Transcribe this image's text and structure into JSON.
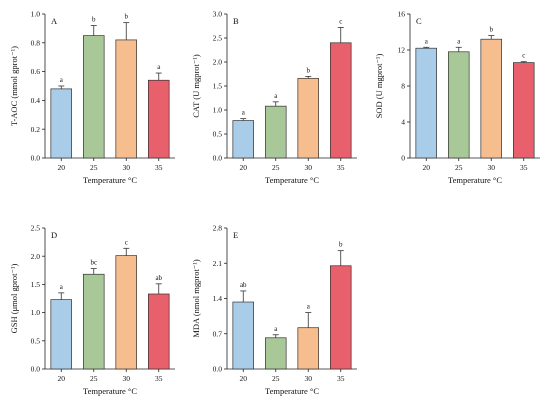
{
  "chart_data": [
    {
      "type": "bar",
      "panel": "A",
      "categories": [
        "20",
        "25",
        "30",
        "35"
      ],
      "values": [
        0.48,
        0.85,
        0.82,
        0.54
      ],
      "errors": [
        0.02,
        0.07,
        0.12,
        0.05
      ],
      "significance": [
        "a",
        "b",
        "b",
        "a"
      ],
      "xlabel": "Temperature °C",
      "ylabel": "T-AOC (mmol gprot⁻¹)",
      "ylim": [
        0,
        1.0
      ],
      "yticks": [
        "0.0",
        "0.2",
        "0.4",
        "0.6",
        "0.8",
        "1.0"
      ],
      "colors": [
        "#a9cce8",
        "#a9c898",
        "#f6bd8e",
        "#e8606b"
      ]
    },
    {
      "type": "bar",
      "panel": "B",
      "categories": [
        "20",
        "25",
        "30",
        "35"
      ],
      "values": [
        0.78,
        1.08,
        1.66,
        2.4
      ],
      "errors": [
        0.04,
        0.09,
        0.04,
        0.32
      ],
      "significance": [
        "a",
        "a",
        "b",
        "c"
      ],
      "xlabel": "Temperature °C",
      "ylabel": "CAT (U mgprot⁻¹)",
      "ylim": [
        0,
        3.0
      ],
      "yticks": [
        "0.0",
        "0.5",
        "1.0",
        "1.5",
        "2.0",
        "2.5",
        "3.0"
      ],
      "colors": [
        "#a9cce8",
        "#a9c898",
        "#f6bd8e",
        "#e8606b"
      ]
    },
    {
      "type": "bar",
      "panel": "C",
      "categories": [
        "20",
        "25",
        "30",
        "35"
      ],
      "values": [
        12.2,
        11.8,
        13.2,
        10.6
      ],
      "errors": [
        0.1,
        0.5,
        0.4,
        0.1
      ],
      "significance": [
        "a",
        "a",
        "b",
        "c"
      ],
      "xlabel": "Temperature °C",
      "ylabel": "SOD (U mgprot⁻¹)",
      "ylim": [
        0,
        16
      ],
      "yticks": [
        "0",
        "4",
        "8",
        "12",
        "16"
      ],
      "colors": [
        "#a9cce8",
        "#a9c898",
        "#f6bd8e",
        "#e8606b"
      ]
    },
    {
      "type": "bar",
      "panel": "D",
      "categories": [
        "20",
        "25",
        "30",
        "35"
      ],
      "values": [
        1.23,
        1.68,
        2.01,
        1.33
      ],
      "errors": [
        0.12,
        0.1,
        0.13,
        0.18
      ],
      "significance": [
        "a",
        "bc",
        "c",
        "ab"
      ],
      "xlabel": "Temperature °C",
      "ylabel": "GSH (μmol gprot⁻¹)",
      "ylim": [
        0,
        2.5
      ],
      "yticks": [
        "0.0",
        "0.5",
        "1.0",
        "1.5",
        "2.0",
        "2.5"
      ],
      "colors": [
        "#a9cce8",
        "#a9c898",
        "#f6bd8e",
        "#e8606b"
      ]
    },
    {
      "type": "bar",
      "panel": "E",
      "categories": [
        "20",
        "25",
        "30",
        "35"
      ],
      "values": [
        1.33,
        0.62,
        0.82,
        2.05
      ],
      "errors": [
        0.22,
        0.06,
        0.3,
        0.3
      ],
      "significance": [
        "ab",
        "a",
        "a",
        "b"
      ],
      "xlabel": "Temperature °C",
      "ylabel": "MDA (nmol mgprot⁻¹)",
      "ylim": [
        0,
        2.8
      ],
      "yticks": [
        "0.0",
        "0.7",
        "1.4",
        "2.1",
        "2.8"
      ],
      "colors": [
        "#a9cce8",
        "#a9c898",
        "#f6bd8e",
        "#e8606b"
      ]
    }
  ]
}
